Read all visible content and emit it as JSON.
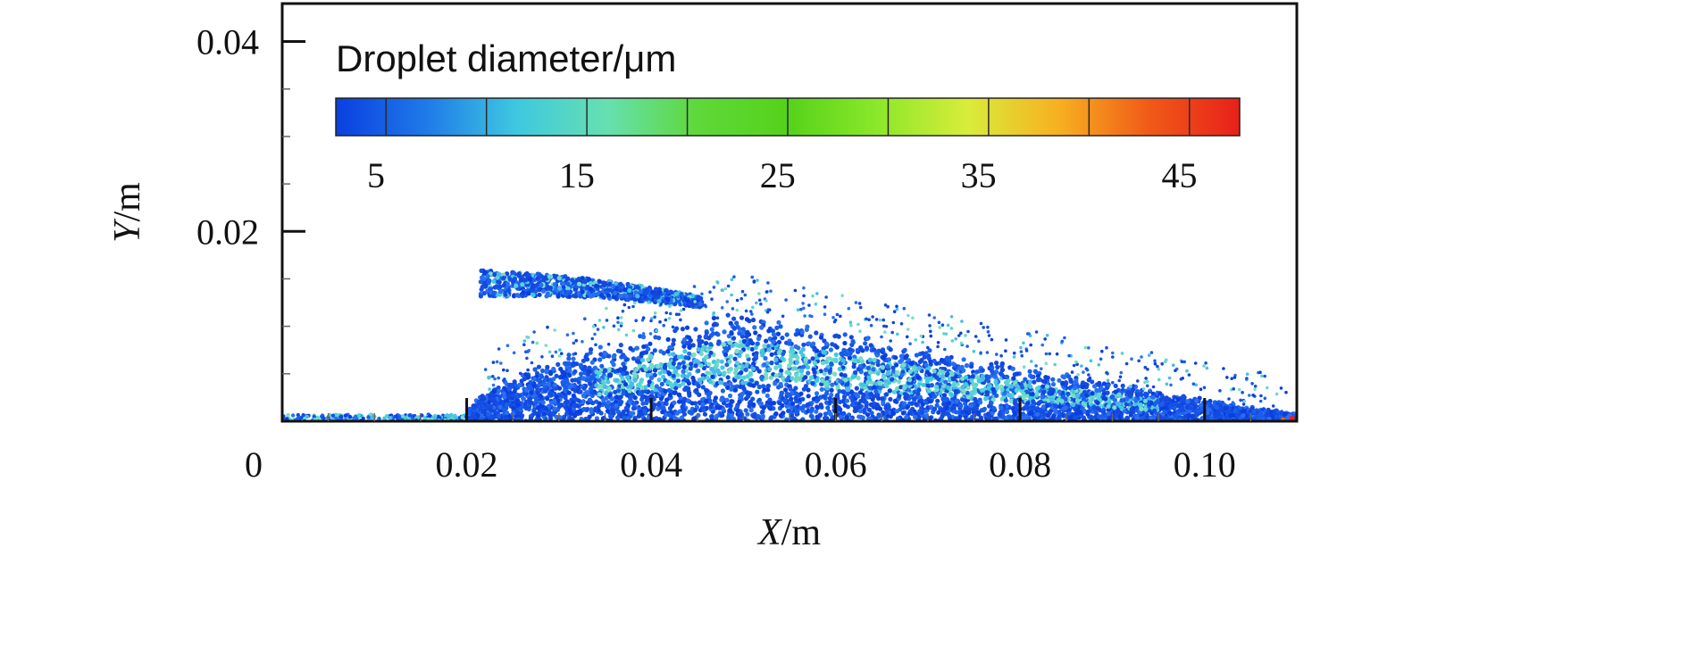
{
  "chart_data": {
    "type": "scatter",
    "title": "",
    "xlabel": {
      "var": "X",
      "unit": "/m"
    },
    "ylabel": {
      "var": "Y",
      "unit": "/m"
    },
    "xlim": [
      0,
      0.11
    ],
    "ylim": [
      0,
      0.044
    ],
    "x_ticks": [
      {
        "value": 0,
        "label": "0"
      },
      {
        "value": 0.02,
        "label": "0.02"
      },
      {
        "value": 0.04,
        "label": "0.04"
      },
      {
        "value": 0.06,
        "label": "0.06"
      },
      {
        "value": 0.08,
        "label": "0.08"
      },
      {
        "value": 0.1,
        "label": "0.10"
      }
    ],
    "y_ticks": [
      {
        "value": 0.02,
        "label": "0.02"
      },
      {
        "value": 0.04,
        "label": "0.04"
      }
    ],
    "grid": false,
    "colorbar": {
      "title": "Droplet diameter/μm",
      "placement": "top",
      "range": [
        3,
        48
      ],
      "ticks": [
        {
          "value": 5,
          "label": "5"
        },
        {
          "value": 15,
          "label": "15"
        },
        {
          "value": 25,
          "label": "25"
        },
        {
          "value": 35,
          "label": "35"
        },
        {
          "value": 45,
          "label": "45"
        }
      ],
      "colors": [
        "#0a3fe0",
        "#1f7ae8",
        "#3ec8e0",
        "#66e0b0",
        "#5fd83a",
        "#55d21a",
        "#8ce82a",
        "#d9ec3a",
        "#f7b020",
        "#f05a18",
        "#e8201a"
      ]
    },
    "spray_regions": [
      {
        "name": "ground film",
        "x": [
          0.0,
          0.02
        ],
        "y_top": 0.0006,
        "diameter": 5
      },
      {
        "name": "main plume",
        "x": [
          0.02,
          0.11
        ],
        "y_peak": 0.011,
        "x_peak": 0.048,
        "diameter": 5
      },
      {
        "name": "plume core",
        "x": [
          0.035,
          0.09
        ],
        "y_peak": 0.007,
        "x_peak": 0.055,
        "diameter": 12
      },
      {
        "name": "upper tongue",
        "x": [
          0.0215,
          0.045
        ],
        "y": [
          0.012,
          0.0165
        ],
        "diameter": 5
      }
    ]
  }
}
